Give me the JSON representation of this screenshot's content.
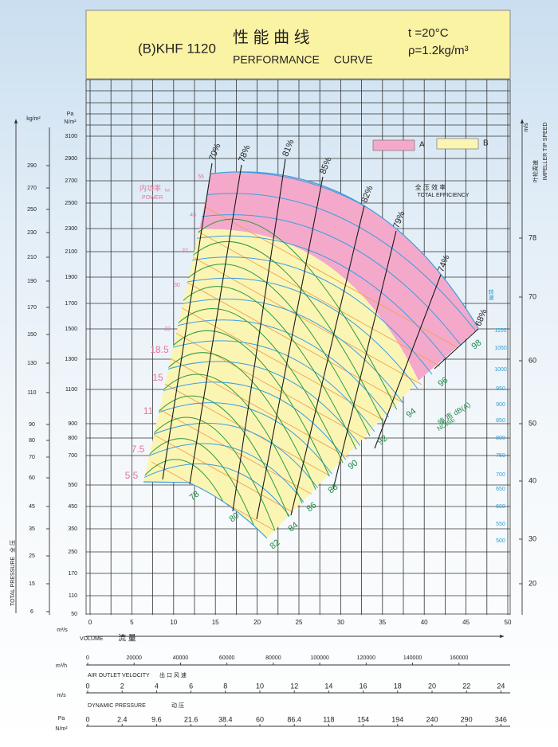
{
  "chart_data": {
    "type": "fan-performance",
    "model": "(B)KHF 1120",
    "title_cn": "性 能 曲 线",
    "title": "PERFORMANCE CURVE",
    "conditions": [
      "t =20°C",
      "ρ=1.2kg/m³"
    ],
    "legend": [
      {
        "name": "A",
        "color": "#f4a9cb"
      },
      {
        "name": "B",
        "color": "#fbf5b4"
      }
    ],
    "y_axis": {
      "units": [
        "Pa",
        "N/m²"
      ],
      "label": [
        "TOTAL PRESSURE",
        "全 压"
      ],
      "ticks": [
        3100,
        2900,
        2700,
        2500,
        2300,
        2100,
        1900,
        1700,
        1500,
        1300,
        1100,
        900,
        800,
        700,
        550,
        450,
        350,
        250,
        170,
        110,
        50
      ]
    },
    "y_axis_kg": {
      "unit": "kg/m²",
      "ticks": [
        290,
        270,
        250,
        230,
        210,
        190,
        170,
        150,
        130,
        110,
        90,
        80,
        70,
        60,
        45,
        35,
        25,
        15,
        6
      ]
    },
    "y2_axis": {
      "unit": "m/s",
      "label": [
        "叶轮周速",
        "IMPELLER TIP SPEED"
      ],
      "ticks": [
        78,
        70,
        60,
        50,
        40,
        30,
        20
      ]
    },
    "speed": {
      "label": "转速",
      "ticks": [
        1100,
        1050,
        1000,
        950,
        900,
        850,
        800,
        750,
        700,
        650,
        600,
        550,
        500
      ]
    },
    "x_axis": {
      "unit": "m³/s",
      "label": [
        "VOLUME",
        "流 量"
      ],
      "xlim": [
        0,
        50
      ],
      "xticks": [
        0,
        5,
        10,
        15,
        20,
        25,
        30,
        35,
        40,
        45,
        50
      ]
    },
    "x_axis_h": {
      "unit": "m³/h",
      "xticks": [
        0,
        20000,
        40000,
        60000,
        80000,
        100000,
        120000,
        140000,
        160000
      ]
    },
    "velocity": {
      "unit": "m/s",
      "label": [
        "AIR OUTLET VELOCITY",
        "出 口 风 速"
      ],
      "ticks": [
        0,
        2,
        4,
        6,
        8,
        10,
        12,
        14,
        16,
        18,
        20,
        22,
        24
      ]
    },
    "dynamic_pressure": {
      "units": [
        "Pa",
        "N/m²"
      ],
      "label": [
        "DYNAMIC PRESSURE",
        "动 压"
      ],
      "ticks": [
        0,
        2.4,
        9.6,
        21.6,
        38.4,
        60,
        86.4,
        118,
        154,
        194,
        240,
        290,
        346
      ]
    },
    "power": {
      "label": [
        "内功率",
        "kw",
        "POWER"
      ],
      "values": [
        55,
        45,
        37,
        30,
        22,
        18.5,
        15,
        11,
        7.5,
        5.5
      ]
    },
    "efficiency": {
      "label": [
        "全 压 效 率",
        "TOTAL EFFICIENCY"
      ],
      "values": [
        "70%",
        "78%",
        "81%",
        "85%",
        "82%",
        "79%",
        "74%",
        "68%"
      ]
    },
    "noise": {
      "label": [
        "噪 声 dB(A)",
        "NOISE"
      ],
      "values": [
        78,
        80,
        82,
        84,
        86,
        88,
        90,
        92,
        94,
        96,
        98
      ]
    }
  }
}
